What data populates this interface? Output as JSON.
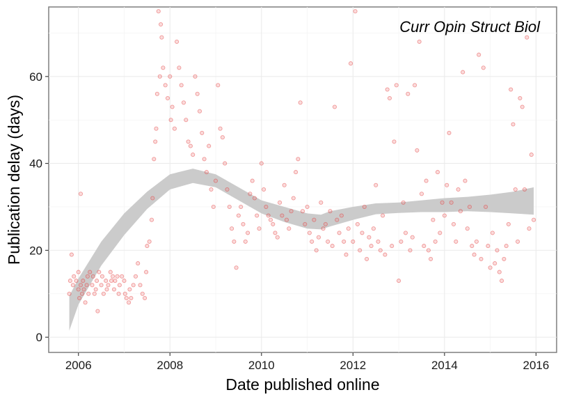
{
  "chart_data": {
    "type": "scatter",
    "title": "",
    "annotation": "Curr Opin Struct Biol",
    "xlabel": "Date published online",
    "ylabel": "Publication delay (days)",
    "xlim": [
      2005.35,
      2016.45
    ],
    "ylim": [
      -3.5,
      76
    ],
    "xticks": [
      2006,
      2008,
      2010,
      2012,
      2014,
      2016
    ],
    "yticks": [
      0,
      20,
      40,
      60
    ],
    "grid": true,
    "legend": "none",
    "point_color": "#f08080",
    "point_stroke": "#e03030",
    "band_color": "#c8c8c8",
    "series": [
      {
        "type": "scatter",
        "points": [
          [
            2005.8,
            10
          ],
          [
            2005.82,
            13
          ],
          [
            2005.85,
            19
          ],
          [
            2005.88,
            12
          ],
          [
            2005.9,
            14
          ],
          [
            2005.95,
            13
          ],
          [
            2006.0,
            11
          ],
          [
            2006.0,
            15
          ],
          [
            2006.02,
            9
          ],
          [
            2006.05,
            33
          ],
          [
            2006.05,
            12
          ],
          [
            2006.08,
            10
          ],
          [
            2006.1,
            13
          ],
          [
            2006.12,
            11
          ],
          [
            2006.15,
            8
          ],
          [
            2006.18,
            12
          ],
          [
            2006.2,
            14
          ],
          [
            2006.22,
            10
          ],
          [
            2006.25,
            15
          ],
          [
            2006.3,
            12
          ],
          [
            2006.32,
            14
          ],
          [
            2006.35,
            10
          ],
          [
            2006.38,
            11
          ],
          [
            2006.4,
            13
          ],
          [
            2006.42,
            6
          ],
          [
            2006.45,
            15
          ],
          [
            2006.5,
            12
          ],
          [
            2006.52,
            14
          ],
          [
            2006.55,
            10
          ],
          [
            2006.6,
            13
          ],
          [
            2006.62,
            11
          ],
          [
            2006.65,
            12
          ],
          [
            2006.7,
            15
          ],
          [
            2006.72,
            13
          ],
          [
            2006.75,
            14
          ],
          [
            2006.78,
            11
          ],
          [
            2006.8,
            13
          ],
          [
            2006.85,
            14
          ],
          [
            2006.88,
            10
          ],
          [
            2006.9,
            12
          ],
          [
            2006.95,
            14
          ],
          [
            2007.0,
            13
          ],
          [
            2007.02,
            10
          ],
          [
            2007.05,
            9
          ],
          [
            2007.1,
            8
          ],
          [
            2007.12,
            11
          ],
          [
            2007.15,
            9
          ],
          [
            2007.2,
            12
          ],
          [
            2007.25,
            14
          ],
          [
            2007.3,
            17
          ],
          [
            2007.35,
            12
          ],
          [
            2007.4,
            10
          ],
          [
            2007.45,
            9
          ],
          [
            2007.48,
            15
          ],
          [
            2007.5,
            21
          ],
          [
            2007.55,
            22
          ],
          [
            2007.6,
            27
          ],
          [
            2007.62,
            32
          ],
          [
            2007.65,
            41
          ],
          [
            2007.68,
            45
          ],
          [
            2007.7,
            48
          ],
          [
            2007.72,
            56
          ],
          [
            2007.75,
            75
          ],
          [
            2007.78,
            60
          ],
          [
            2007.8,
            72
          ],
          [
            2007.82,
            69
          ],
          [
            2007.85,
            62
          ],
          [
            2007.9,
            58
          ],
          [
            2007.95,
            55
          ],
          [
            2008.0,
            60
          ],
          [
            2008.02,
            50
          ],
          [
            2008.05,
            53
          ],
          [
            2008.1,
            48
          ],
          [
            2008.15,
            68
          ],
          [
            2008.2,
            62
          ],
          [
            2008.25,
            58
          ],
          [
            2008.3,
            54
          ],
          [
            2008.35,
            50
          ],
          [
            2008.4,
            45
          ],
          [
            2008.45,
            44
          ],
          [
            2008.5,
            42
          ],
          [
            2008.55,
            60
          ],
          [
            2008.6,
            56
          ],
          [
            2008.65,
            52
          ],
          [
            2008.7,
            47
          ],
          [
            2008.75,
            41
          ],
          [
            2008.8,
            38
          ],
          [
            2008.85,
            44
          ],
          [
            2008.9,
            34
          ],
          [
            2008.95,
            30
          ],
          [
            2009.0,
            36
          ],
          [
            2009.05,
            58
          ],
          [
            2009.1,
            48
          ],
          [
            2009.15,
            46
          ],
          [
            2009.2,
            40
          ],
          [
            2009.25,
            34
          ],
          [
            2009.3,
            30
          ],
          [
            2009.35,
            25
          ],
          [
            2009.4,
            22
          ],
          [
            2009.45,
            16
          ],
          [
            2009.5,
            28
          ],
          [
            2009.55,
            30
          ],
          [
            2009.6,
            26
          ],
          [
            2009.65,
            22
          ],
          [
            2009.7,
            24
          ],
          [
            2009.75,
            33
          ],
          [
            2009.8,
            36
          ],
          [
            2009.85,
            32
          ],
          [
            2009.9,
            28
          ],
          [
            2009.95,
            25
          ],
          [
            2010.0,
            40
          ],
          [
            2010.05,
            34
          ],
          [
            2010.1,
            30
          ],
          [
            2010.15,
            28
          ],
          [
            2010.2,
            27
          ],
          [
            2010.25,
            26
          ],
          [
            2010.3,
            24
          ],
          [
            2010.35,
            23
          ],
          [
            2010.4,
            31
          ],
          [
            2010.45,
            28
          ],
          [
            2010.5,
            35
          ],
          [
            2010.55,
            27
          ],
          [
            2010.6,
            25
          ],
          [
            2010.65,
            29
          ],
          [
            2010.7,
            32
          ],
          [
            2010.75,
            38
          ],
          [
            2010.8,
            41
          ],
          [
            2010.85,
            54
          ],
          [
            2010.9,
            29
          ],
          [
            2010.95,
            26
          ],
          [
            2011.0,
            30
          ],
          [
            2011.05,
            24
          ],
          [
            2011.1,
            22
          ],
          [
            2011.15,
            27
          ],
          [
            2011.2,
            20
          ],
          [
            2011.25,
            23
          ],
          [
            2011.3,
            31
          ],
          [
            2011.35,
            25
          ],
          [
            2011.4,
            26
          ],
          [
            2011.45,
            22
          ],
          [
            2011.5,
            29
          ],
          [
            2011.55,
            21
          ],
          [
            2011.6,
            53
          ],
          [
            2011.65,
            27
          ],
          [
            2011.7,
            24
          ],
          [
            2011.75,
            28
          ],
          [
            2011.8,
            22
          ],
          [
            2011.85,
            19
          ],
          [
            2011.9,
            25
          ],
          [
            2011.95,
            63
          ],
          [
            2012.0,
            22
          ],
          [
            2012.05,
            75
          ],
          [
            2012.1,
            26
          ],
          [
            2012.15,
            20
          ],
          [
            2012.2,
            24
          ],
          [
            2012.25,
            30
          ],
          [
            2012.3,
            18
          ],
          [
            2012.35,
            23
          ],
          [
            2012.4,
            21
          ],
          [
            2012.45,
            25
          ],
          [
            2012.5,
            35
          ],
          [
            2012.55,
            22
          ],
          [
            2012.6,
            20
          ],
          [
            2012.65,
            28
          ],
          [
            2012.7,
            19
          ],
          [
            2012.75,
            57
          ],
          [
            2012.8,
            55
          ],
          [
            2012.85,
            21
          ],
          [
            2012.9,
            45
          ],
          [
            2012.95,
            58
          ],
          [
            2013.0,
            13
          ],
          [
            2013.05,
            22
          ],
          [
            2013.1,
            31
          ],
          [
            2013.15,
            24
          ],
          [
            2013.2,
            56
          ],
          [
            2013.25,
            20
          ],
          [
            2013.3,
            23
          ],
          [
            2013.35,
            58
          ],
          [
            2013.4,
            43
          ],
          [
            2013.45,
            68
          ],
          [
            2013.5,
            33
          ],
          [
            2013.55,
            21
          ],
          [
            2013.6,
            36
          ],
          [
            2013.65,
            20
          ],
          [
            2013.7,
            18
          ],
          [
            2013.75,
            27
          ],
          [
            2013.8,
            22
          ],
          [
            2013.85,
            38
          ],
          [
            2013.9,
            24
          ],
          [
            2013.95,
            31
          ],
          [
            2014.0,
            28
          ],
          [
            2014.05,
            35
          ],
          [
            2014.1,
            47
          ],
          [
            2014.15,
            31
          ],
          [
            2014.2,
            26
          ],
          [
            2014.25,
            22
          ],
          [
            2014.3,
            34
          ],
          [
            2014.35,
            29
          ],
          [
            2014.4,
            61
          ],
          [
            2014.45,
            36
          ],
          [
            2014.5,
            25
          ],
          [
            2014.55,
            30
          ],
          [
            2014.6,
            21
          ],
          [
            2014.65,
            19
          ],
          [
            2014.7,
            22
          ],
          [
            2014.75,
            65
          ],
          [
            2014.8,
            18
          ],
          [
            2014.85,
            62
          ],
          [
            2014.9,
            30
          ],
          [
            2014.95,
            21
          ],
          [
            2015.0,
            16
          ],
          [
            2015.05,
            24
          ],
          [
            2015.1,
            17
          ],
          [
            2015.15,
            20
          ],
          [
            2015.2,
            15
          ],
          [
            2015.25,
            13
          ],
          [
            2015.3,
            18
          ],
          [
            2015.35,
            21
          ],
          [
            2015.4,
            26
          ],
          [
            2015.45,
            57
          ],
          [
            2015.5,
            49
          ],
          [
            2015.55,
            34
          ],
          [
            2015.6,
            22
          ],
          [
            2015.65,
            55
          ],
          [
            2015.7,
            53
          ],
          [
            2015.75,
            34
          ],
          [
            2015.8,
            69
          ],
          [
            2015.85,
            25
          ],
          [
            2015.9,
            42
          ],
          [
            2015.95,
            27
          ]
        ]
      },
      {
        "type": "smooth",
        "name": "",
        "x": [
          2005.8,
          2006.0,
          2006.5,
          2007.0,
          2007.5,
          2008.0,
          2008.5,
          2009.0,
          2009.5,
          2010.0,
          2010.5,
          2011.0,
          2011.3,
          2011.5,
          2012.0,
          2012.5,
          2013.0,
          2013.5,
          2014.0,
          2014.5,
          2015.0,
          2015.5,
          2015.95
        ],
        "lower": [
          1.5,
          7.5,
          16.5,
          23.5,
          29.5,
          34.0,
          35.5,
          34.5,
          31.5,
          28.5,
          26.5,
          25.0,
          24.8,
          25.5,
          27.0,
          28.3,
          28.6,
          28.8,
          28.8,
          29.0,
          28.8,
          28.5,
          28.2
        ],
        "upper": [
          9.5,
          13.5,
          22.0,
          28.5,
          33.5,
          37.5,
          38.8,
          37.5,
          34.5,
          31.5,
          30.0,
          28.5,
          28.2,
          29.0,
          30.0,
          30.8,
          31.0,
          31.5,
          32.0,
          32.3,
          32.8,
          33.5,
          34.5
        ]
      }
    ]
  }
}
